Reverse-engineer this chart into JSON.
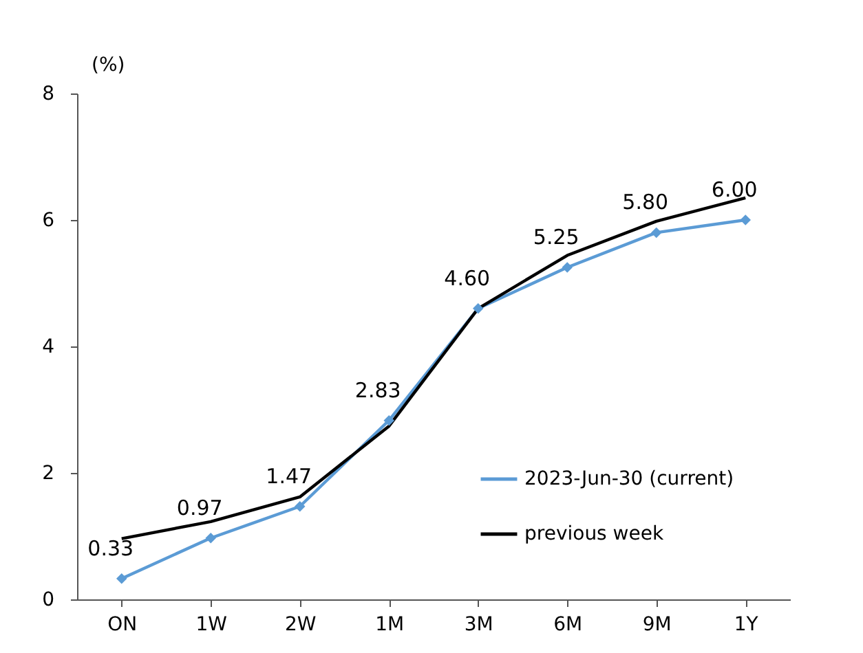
{
  "chart_data": {
    "type": "line",
    "ylabel": "(%)",
    "categories": [
      "ON",
      "1W",
      "2W",
      "1M",
      "3M",
      "6M",
      "9M",
      "1Y"
    ],
    "series": [
      {
        "name": "2023-Jun-30 (current)",
        "color": "#5b9bd5",
        "marker": "diamond",
        "values": [
          0.33,
          0.97,
          1.47,
          2.83,
          4.6,
          5.25,
          5.8,
          6.0
        ],
        "value_labels": [
          "0.33",
          "0.97",
          "1.47",
          "2.83",
          "4.60",
          "5.25",
          "5.80",
          "6.00"
        ]
      },
      {
        "name": "previous week",
        "color": "#000000",
        "marker": "none",
        "values": [
          0.96,
          1.23,
          1.62,
          2.74,
          4.6,
          5.44,
          5.98,
          6.35
        ]
      }
    ],
    "ylim": [
      0,
      8
    ],
    "yticks": [
      0,
      2,
      4,
      6,
      8
    ],
    "grid": false,
    "legend": "bottom right"
  }
}
